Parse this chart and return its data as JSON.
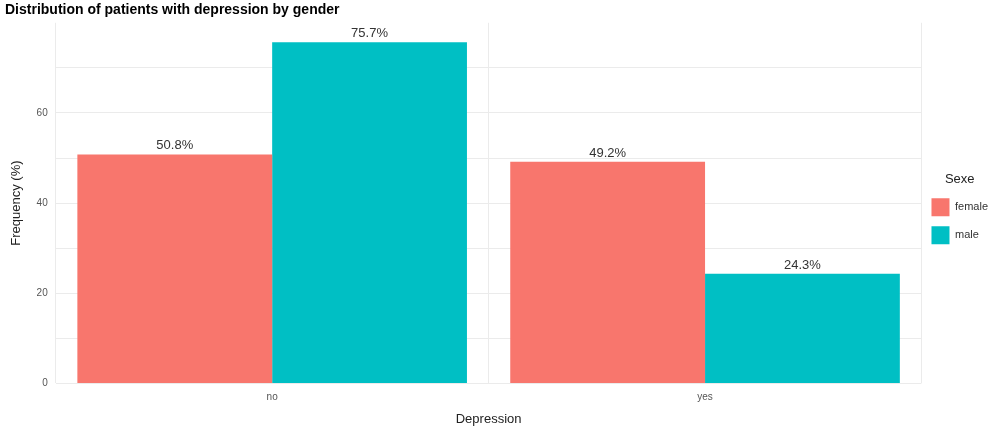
{
  "chart_data": {
    "type": "bar",
    "title": "Distribution of patients with depression by gender",
    "xlabel": "Depression",
    "ylabel": "Frequency (%)",
    "legend_title": "Sexe",
    "categories": [
      "no",
      "yes"
    ],
    "series": [
      {
        "name": "female",
        "color": "#f8766d",
        "values": [
          50.8,
          49.2
        ],
        "value_labels": [
          "50.8%",
          "49.2%"
        ]
      },
      {
        "name": "male",
        "color": "#00bfc4",
        "values": [
          75.7,
          24.3
        ],
        "value_labels": [
          "75.7%",
          "24.3%"
        ]
      }
    ],
    "ylim": [
      0,
      80
    ],
    "yticks": [
      0,
      {
        "value": 10,
        "label": null
      },
      20,
      {
        "value": 30,
        "label": null
      },
      40,
      {
        "value": 50,
        "label": null
      },
      60,
      {
        "value": 70,
        "label": null
      }
    ],
    "grid": true,
    "legend": "right"
  }
}
